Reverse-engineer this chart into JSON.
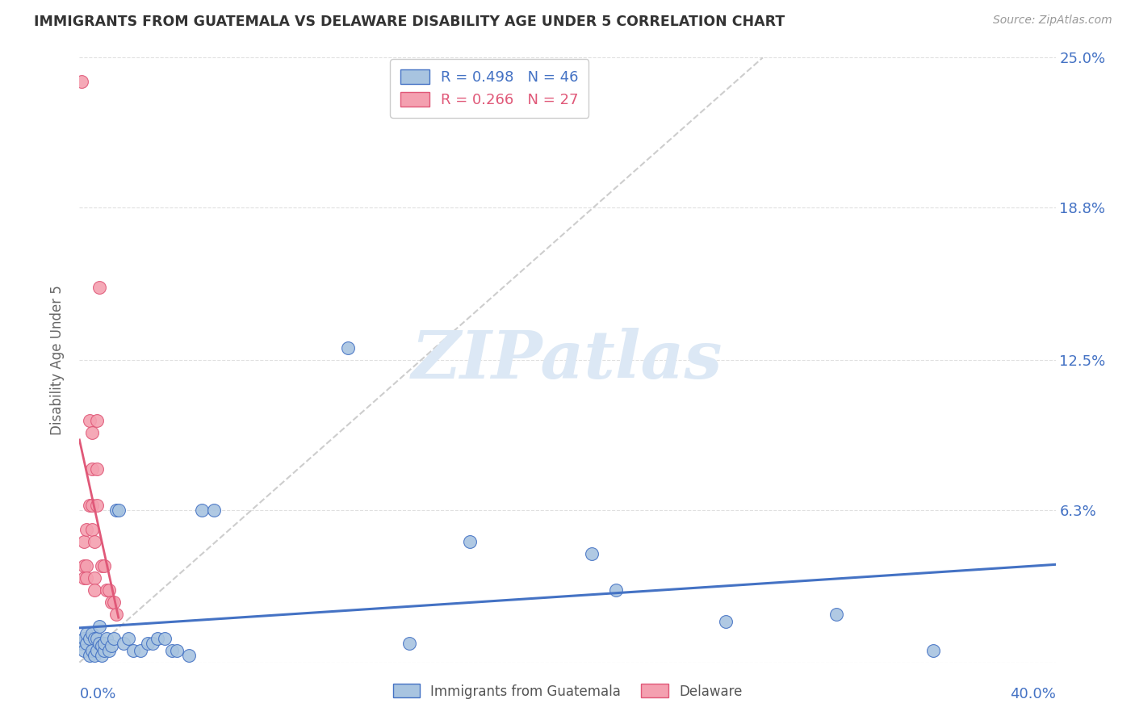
{
  "title": "IMMIGRANTS FROM GUATEMALA VS DELAWARE DISABILITY AGE UNDER 5 CORRELATION CHART",
  "source": "Source: ZipAtlas.com",
  "ylabel": "Disability Age Under 5",
  "xlim": [
    0.0,
    0.4
  ],
  "ylim": [
    0.0,
    0.25
  ],
  "xticks": [
    0.0,
    0.1,
    0.2,
    0.3,
    0.4
  ],
  "ytick_labels": [
    "",
    "6.3%",
    "12.5%",
    "18.8%",
    "25.0%"
  ],
  "yticks": [
    0.0,
    0.063,
    0.125,
    0.188,
    0.25
  ],
  "legend1_label": "Immigrants from Guatemala",
  "legend2_label": "Delaware",
  "r1": 0.498,
  "n1": 46,
  "r2": 0.266,
  "n2": 27,
  "blue_color": "#a8c4e0",
  "pink_color": "#f4a0b0",
  "line_blue": "#4472c4",
  "line_pink": "#e05878",
  "line_dash": "#c8c8c8",
  "watermark_color": "#dce8f5",
  "blue_scatter_x": [
    0.001,
    0.002,
    0.002,
    0.003,
    0.003,
    0.004,
    0.004,
    0.005,
    0.005,
    0.006,
    0.006,
    0.007,
    0.007,
    0.008,
    0.008,
    0.009,
    0.009,
    0.01,
    0.01,
    0.011,
    0.012,
    0.013,
    0.014,
    0.015,
    0.016,
    0.018,
    0.02,
    0.022,
    0.025,
    0.028,
    0.03,
    0.032,
    0.035,
    0.038,
    0.04,
    0.045,
    0.05,
    0.055,
    0.11,
    0.135,
    0.16,
    0.21,
    0.22,
    0.265,
    0.31,
    0.35
  ],
  "blue_scatter_y": [
    0.008,
    0.01,
    0.005,
    0.008,
    0.012,
    0.01,
    0.003,
    0.012,
    0.005,
    0.01,
    0.003,
    0.005,
    0.01,
    0.008,
    0.015,
    0.007,
    0.003,
    0.005,
    0.008,
    0.01,
    0.005,
    0.007,
    0.01,
    0.063,
    0.063,
    0.008,
    0.01,
    0.005,
    0.005,
    0.008,
    0.008,
    0.01,
    0.01,
    0.005,
    0.005,
    0.003,
    0.063,
    0.063,
    0.13,
    0.008,
    0.05,
    0.045,
    0.03,
    0.017,
    0.02,
    0.005
  ],
  "pink_scatter_x": [
    0.001,
    0.002,
    0.002,
    0.002,
    0.003,
    0.003,
    0.003,
    0.004,
    0.004,
    0.005,
    0.005,
    0.005,
    0.005,
    0.006,
    0.006,
    0.006,
    0.007,
    0.007,
    0.007,
    0.008,
    0.009,
    0.01,
    0.011,
    0.012,
    0.013,
    0.014,
    0.015
  ],
  "pink_scatter_y": [
    0.24,
    0.05,
    0.035,
    0.04,
    0.055,
    0.04,
    0.035,
    0.1,
    0.065,
    0.08,
    0.065,
    0.095,
    0.055,
    0.05,
    0.035,
    0.03,
    0.1,
    0.08,
    0.065,
    0.155,
    0.04,
    0.04,
    0.03,
    0.03,
    0.025,
    0.025,
    0.02
  ],
  "background_color": "#ffffff",
  "grid_color": "#e0e0e0"
}
